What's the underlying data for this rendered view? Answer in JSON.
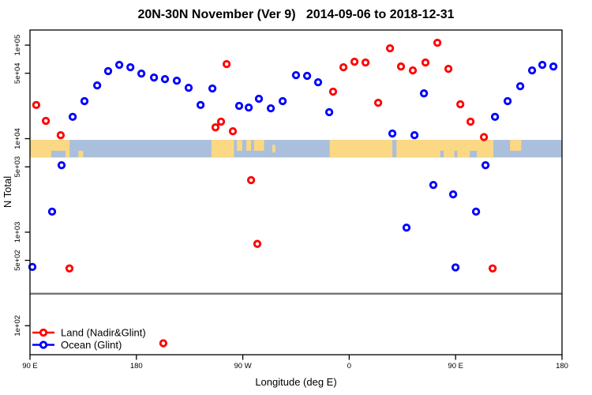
{
  "title": "20N-30N November (Ver 9)   2014-09-06 to 2018-12-31",
  "axes": {
    "x": {
      "label": "Longitude (deg E)",
      "range": [
        90,
        540
      ],
      "ticks": [
        {
          "lon": 90,
          "label": "90 E"
        },
        {
          "lon": 180,
          "label": "180"
        },
        {
          "lon": 270,
          "label": "90 W"
        },
        {
          "lon": 360,
          "label": "0"
        },
        {
          "lon": 450,
          "label": "90 E"
        },
        {
          "lon": 540,
          "label": "180"
        }
      ]
    },
    "y": {
      "label": "N Total",
      "scale": "log",
      "range": [
        49,
        145000
      ],
      "ticks": [
        {
          "v": 100000,
          "label": "1e+05"
        },
        {
          "v": 50000,
          "label": "5e+04"
        },
        {
          "v": 10000,
          "label": "1e+04"
        },
        {
          "v": 5000,
          "label": "5e+03"
        },
        {
          "v": 1000,
          "label": "1e+03"
        },
        {
          "v": 500,
          "label": "5e+02"
        },
        {
          "v": 100,
          "label": "1e+02"
        }
      ]
    }
  },
  "legend": [
    {
      "label": "Land (Nadir&Glint)",
      "color": "#ff0000"
    },
    {
      "label": "Ocean (Glint)",
      "color": "#0000ff"
    }
  ],
  "colors": {
    "land_series": "#ff0000",
    "ocean_series": "#0000ff",
    "band_ocean": "#aabfdc",
    "band_land": "#fbd884",
    "threshold_line": "#6e6e6e",
    "axis": "#000000"
  },
  "threshold_line": {
    "value": 220
  },
  "map_band": {
    "y_range": [
      6300,
      9700
    ],
    "land_segments": [
      {
        "from": 90,
        "to": 123.5,
        "part": "full"
      },
      {
        "from": 131,
        "to": 135,
        "part": "bottom"
      },
      {
        "from": 243.5,
        "to": 262.5,
        "part": "full"
      },
      {
        "from": 265,
        "to": 269.5,
        "part": "top"
      },
      {
        "from": 273,
        "to": 277,
        "part": "top"
      },
      {
        "from": 279.5,
        "to": 288,
        "part": "top"
      },
      {
        "from": 295,
        "to": 297.5,
        "part": "mid"
      },
      {
        "from": 343.5,
        "to": 482,
        "part": "full"
      },
      {
        "from": 496,
        "to": 505.5,
        "part": "top"
      }
    ],
    "ocean_patches": [
      {
        "from": 108,
        "to": 120,
        "part": "bottom"
      },
      {
        "from": 396.5,
        "to": 400,
        "part": "full"
      },
      {
        "from": 437,
        "to": 440,
        "part": "bottom"
      },
      {
        "from": 449,
        "to": 451.5,
        "part": "bottom"
      },
      {
        "from": 462,
        "to": 468,
        "part": "bottom"
      }
    ]
  },
  "chart_data": {
    "type": "scatter",
    "x_axis": "Longitude (deg E), wrapping 90E to 180 twice",
    "y_axis": "N Total (log scale)",
    "series": [
      {
        "name": "Land (Nadir&Glint)",
        "color": "#ff0000",
        "points": [
          [
            95.3,
            22900
          ],
          [
            103.4,
            15500
          ],
          [
            116,
            10900
          ],
          [
            123.4,
            410
          ],
          [
            202.8,
            65
          ],
          [
            246.9,
            13200
          ],
          [
            251.6,
            15200
          ],
          [
            256.3,
            62700
          ],
          [
            261.6,
            12000
          ],
          [
            277,
            3600
          ],
          [
            282.3,
            750
          ],
          [
            346.4,
            31800
          ],
          [
            355.1,
            58000
          ],
          [
            364.5,
            66500
          ],
          [
            373.8,
            65200
          ],
          [
            384.5,
            24200
          ],
          [
            394.5,
            92500
          ],
          [
            403.8,
            59100
          ],
          [
            413.8,
            53700
          ],
          [
            424.5,
            65200
          ],
          [
            434.6,
            106000
          ],
          [
            443.9,
            55800
          ],
          [
            454,
            23300
          ],
          [
            462.6,
            15200
          ],
          [
            474,
            10400
          ],
          [
            481.3,
            410
          ]
        ]
      },
      {
        "name": "Ocean (Glint)",
        "color": "#0000ff",
        "points": [
          [
            92,
            425
          ],
          [
            108.7,
            1660
          ],
          [
            116.7,
            5200
          ],
          [
            126.1,
            17100
          ],
          [
            136.1,
            25200
          ],
          [
            146.8,
            37100
          ],
          [
            156.1,
            52700
          ],
          [
            165.5,
            61500
          ],
          [
            174.9,
            58000
          ],
          [
            184.2,
            49700
          ],
          [
            194.9,
            45100
          ],
          [
            204.2,
            43300
          ],
          [
            214.2,
            41700
          ],
          [
            224.2,
            35000
          ],
          [
            234.3,
            22900
          ],
          [
            244.3,
            34400
          ],
          [
            266.9,
            22400
          ],
          [
            275,
            21500
          ],
          [
            283.6,
            26700
          ],
          [
            293.7,
            21100
          ],
          [
            303.7,
            25200
          ],
          [
            315,
            47800
          ],
          [
            324.4,
            46900
          ],
          [
            333.7,
            40100
          ],
          [
            343.1,
            19200
          ],
          [
            396.5,
            11350
          ],
          [
            408.5,
            1120
          ],
          [
            415.2,
            10900
          ],
          [
            423.2,
            30500
          ],
          [
            431.2,
            3200
          ],
          [
            447.9,
            2540
          ],
          [
            449.9,
            420
          ],
          [
            467.3,
            1660
          ],
          [
            475.3,
            5200
          ],
          [
            483.3,
            17100
          ],
          [
            494,
            25200
          ],
          [
            504.7,
            36400
          ],
          [
            514.7,
            53700
          ],
          [
            523.4,
            61500
          ],
          [
            532.7,
            59100
          ]
        ]
      }
    ]
  }
}
